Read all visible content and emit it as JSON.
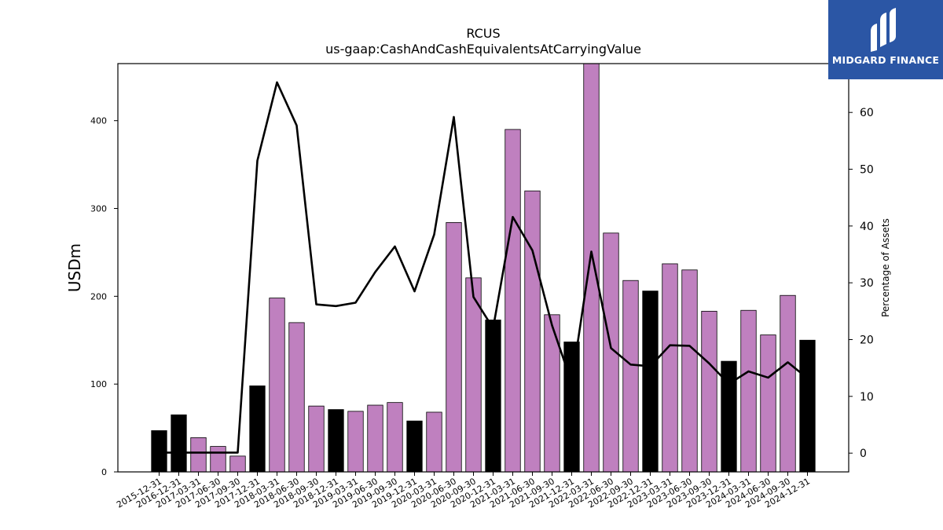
{
  "chart_data": {
    "type": "bar",
    "title": "RCUS",
    "subtitle": "us-gaap:CashAndCashEquivalentsAtCarryingValue",
    "ylabel": "USDm",
    "y2label": "Percentage of Assets",
    "ylim": [
      0,
      465
    ],
    "y2lim": [
      -3.3,
      68.6
    ],
    "yticks": [
      0,
      100,
      200,
      300,
      400
    ],
    "y2ticks": [
      0,
      10,
      20,
      30,
      40,
      50,
      60
    ],
    "grid": false,
    "colors": {
      "annual": "#000000",
      "quarterly": "#bf80bf",
      "line": "#000000"
    },
    "categories": [
      "2015-12-31",
      "2016-12-31",
      "2017-03-31",
      "2017-06-30",
      "2017-09-30",
      "2017-12-31",
      "2018-03-31",
      "2018-06-30",
      "2018-09-30",
      "2018-12-31",
      "2019-03-31",
      "2019-06-30",
      "2019-09-30",
      "2019-12-31",
      "2020-03-31",
      "2020-06-30",
      "2020-09-30",
      "2020-12-31",
      "2021-03-31",
      "2021-06-30",
      "2021-09-30",
      "2021-12-31",
      "2022-03-31",
      "2022-06-30",
      "2022-09-30",
      "2022-12-31",
      "2023-03-31",
      "2023-06-30",
      "2023-09-30",
      "2023-12-31",
      "2024-03-31",
      "2024-06-30",
      "2024-09-30",
      "2024-12-31"
    ],
    "series": [
      {
        "values": [
          47,
          65,
          39,
          29,
          18,
          98,
          198,
          170,
          75,
          71,
          69,
          76,
          79,
          58,
          68,
          284,
          221,
          173,
          390,
          320,
          179,
          148,
          466,
          272,
          218,
          206,
          237,
          230,
          183,
          126,
          184,
          156,
          201,
          150
        ],
        "bar_color": [
          "annual",
          "annual",
          "quarterly",
          "quarterly",
          "quarterly",
          "annual",
          "quarterly",
          "quarterly",
          "quarterly",
          "annual",
          "quarterly",
          "quarterly",
          "quarterly",
          "annual",
          "quarterly",
          "quarterly",
          "quarterly",
          "annual",
          "quarterly",
          "quarterly",
          "quarterly",
          "annual",
          "quarterly",
          "quarterly",
          "quarterly",
          "annual",
          "quarterly",
          "quarterly",
          "quarterly",
          "annual",
          "quarterly",
          "quarterly",
          "quarterly",
          "annual"
        ]
      },
      {
        "axis": "right",
        "type": "line",
        "values": [
          0.1,
          0.1,
          0.1,
          0.1,
          0.1,
          51.5,
          65.3,
          57.7,
          26.2,
          25.9,
          26.5,
          31.9,
          36.4,
          28.5,
          38.5,
          59.2,
          27.5,
          22.0,
          41.6,
          35.7,
          22.5,
          12.4,
          35.5,
          18.5,
          15.6,
          15.3,
          19.0,
          18.9,
          15.8,
          12.2,
          14.4,
          13.3,
          16.0,
          13.2
        ]
      }
    ]
  },
  "logo": {
    "text": "MIDGARD FINANCE"
  }
}
